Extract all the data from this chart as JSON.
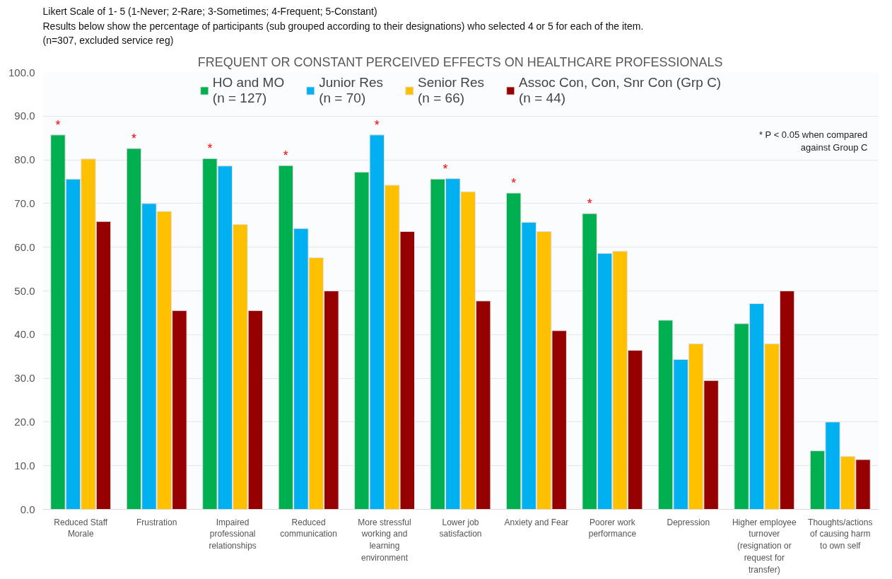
{
  "chart_data": {
    "type": "bar",
    "title": "FREQUENT OR CONSTANT PERCEIVED EFFECTS ON HEALTHCARE PROFESSIONALS",
    "subtitle": "Likert Scale of 1- 5 (1-Never; 2-Rare; 3-Sometimes; 4-Frequent; 5-Constant)\nResults below show the percentage of participants (sub grouped according to their designations) who selected 4 or 5 for each of the item.\n(n=307, excluded service reg)",
    "categories": [
      "Reduced Staff Morale",
      "Frustration",
      "Impaired professional relationships",
      "Reduced communication",
      "More stressful working and learning environment",
      "Lower job satisfaction",
      "Anxiety and Fear",
      "Poorer work performance",
      "Depression",
      "Higher employee turnover (resignation or request for transfer)",
      "Thoughts/actions of causing harm to own self"
    ],
    "series": [
      {
        "name": "HO and MO\n(n = 127)",
        "color": "#00b050",
        "values": [
          85.7,
          82.6,
          80.3,
          78.7,
          77.2,
          75.6,
          72.4,
          67.7,
          43.3,
          42.5,
          13.4
        ]
      },
      {
        "name": "Junior Res\n(n = 70)",
        "color": "#00b0f0",
        "values": [
          75.6,
          70.0,
          78.6,
          64.3,
          85.7,
          75.7,
          65.7,
          58.6,
          34.3,
          47.1,
          20.0
        ]
      },
      {
        "name": "Senior Res\n(n = 66)",
        "color": "#ffc000",
        "values": [
          80.2,
          68.2,
          65.2,
          57.6,
          74.2,
          72.7,
          63.6,
          59.1,
          37.9,
          37.9,
          12.1
        ]
      },
      {
        "name": "Assoc Con, Con, Snr Con (Grp C)\n(n = 44)",
        "color": "#960000",
        "values": [
          65.9,
          45.5,
          45.5,
          50.0,
          63.6,
          47.7,
          40.9,
          36.4,
          29.5,
          50.0,
          11.4
        ]
      }
    ],
    "ylim": [
      0,
      100
    ],
    "yticks": [
      {
        "value": 0,
        "label": "0.0"
      },
      {
        "value": 10,
        "label": "10.0"
      },
      {
        "value": 20,
        "label": "20.0"
      },
      {
        "value": 30,
        "label": "30.0"
      },
      {
        "value": 40,
        "label": "40.0"
      },
      {
        "value": 50,
        "label": "50.0"
      },
      {
        "value": 60,
        "label": "60.0"
      },
      {
        "value": 70,
        "label": "70.0"
      },
      {
        "value": 80,
        "label": "80.0"
      },
      {
        "value": 90,
        "label": "90.0"
      },
      {
        "value": 100,
        "label": "100.0"
      }
    ],
    "grid": "y",
    "legend": "top",
    "annotations": [
      "*",
      "*",
      "*",
      "*",
      "*",
      "*",
      "*",
      "*",
      "* P < 0.05 when compared against Group C"
    ]
  }
}
